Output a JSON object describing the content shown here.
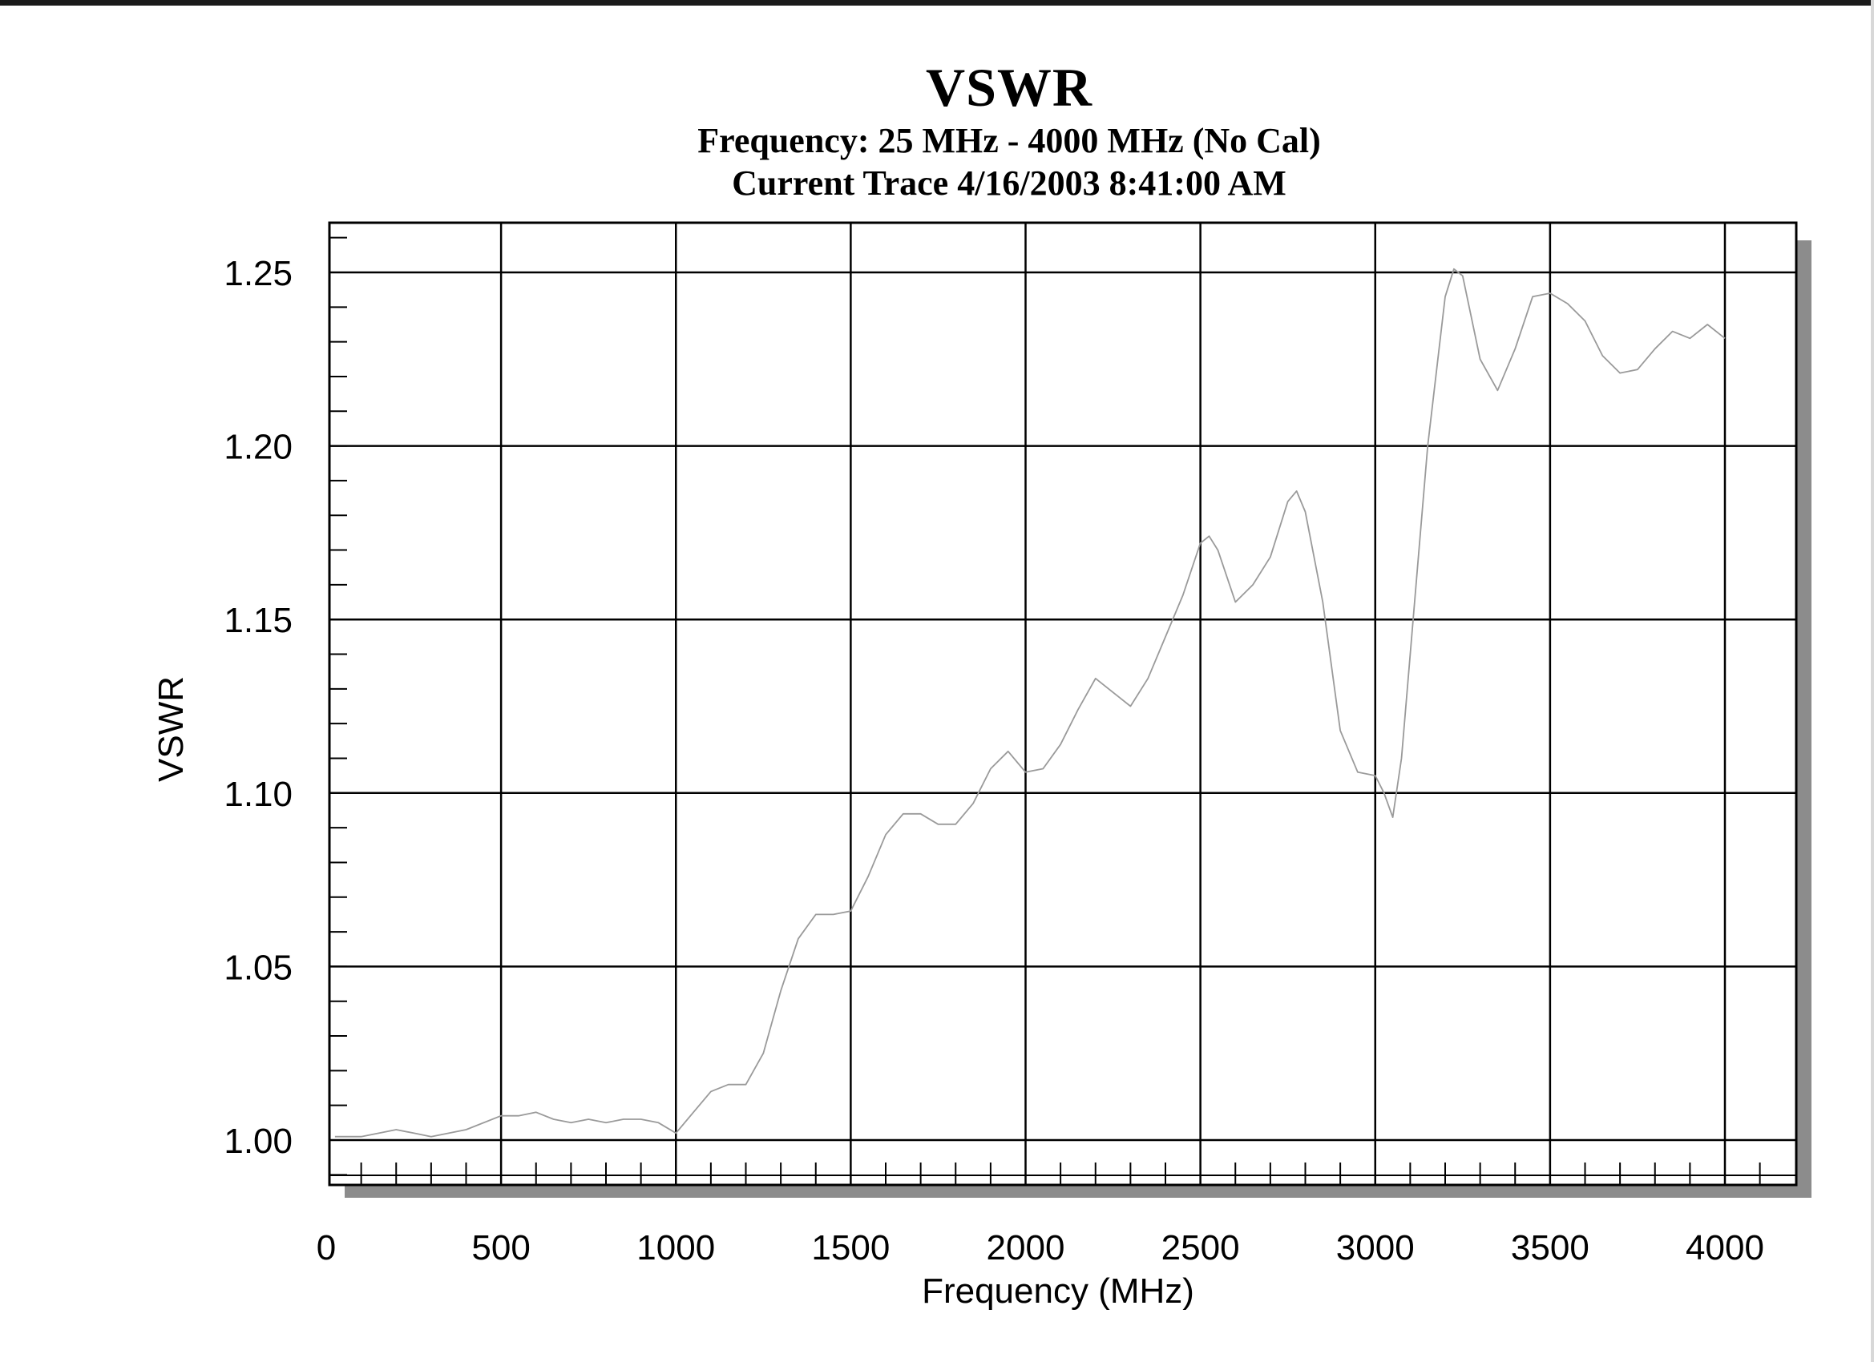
{
  "chart_data": {
    "type": "line",
    "title": "VSWR",
    "subtitle": [
      "Frequency: 25 MHz - 4000 MHz (No Cal)",
      "Current Trace 4/16/2003 8:41:00 AM"
    ],
    "xlabel": "Frequency (MHz)",
    "ylabel": "VSWR",
    "xlim": [
      0,
      4200
    ],
    "ylim": [
      0.988,
      1.265
    ],
    "x_ticks": [
      0,
      500,
      1000,
      1500,
      2000,
      2500,
      3000,
      3500,
      4000
    ],
    "x_tick_labels": [
      "0",
      "500",
      "1000",
      "1500",
      "2000",
      "2500",
      "3000",
      "3500",
      "4000"
    ],
    "y_ticks": [
      1.0,
      1.05,
      1.1,
      1.15,
      1.2,
      1.25
    ],
    "y_tick_labels": [
      "1.00",
      "1.05",
      "1.10",
      "1.15",
      "1.20",
      "1.25"
    ],
    "grid": true,
    "line_color": "#9a9a9a",
    "series": [
      {
        "x": [
          25,
          100,
          200,
          250,
          300,
          400,
          500,
          550,
          600,
          650,
          700,
          750,
          800,
          850,
          900,
          950,
          1000,
          1050,
          1100,
          1150,
          1200,
          1250,
          1300,
          1350,
          1400,
          1450,
          1500,
          1550,
          1600,
          1650,
          1700,
          1750,
          1800,
          1850,
          1900,
          1950,
          2000,
          2050,
          2100,
          2150,
          2200,
          2250,
          2300,
          2350,
          2400,
          2450,
          2500,
          2525,
          2550,
          2600,
          2650,
          2700,
          2750,
          2775,
          2800,
          2850,
          2900,
          2950,
          3000,
          3025,
          3050,
          3075,
          3100,
          3150,
          3200,
          3225,
          3250,
          3300,
          3350,
          3400,
          3450,
          3500,
          3550,
          3600,
          3650,
          3700,
          3750,
          3800,
          3850,
          3900,
          3950,
          4000
        ],
        "y": [
          1.001,
          1.001,
          1.003,
          1.002,
          1.001,
          1.003,
          1.007,
          1.007,
          1.008,
          1.006,
          1.005,
          1.006,
          1.005,
          1.006,
          1.006,
          1.005,
          1.002,
          1.008,
          1.014,
          1.016,
          1.016,
          1.025,
          1.043,
          1.058,
          1.065,
          1.065,
          1.066,
          1.076,
          1.088,
          1.094,
          1.094,
          1.091,
          1.091,
          1.097,
          1.107,
          1.112,
          1.106,
          1.107,
          1.114,
          1.124,
          1.133,
          1.129,
          1.125,
          1.133,
          1.145,
          1.157,
          1.172,
          1.174,
          1.17,
          1.155,
          1.16,
          1.168,
          1.184,
          1.187,
          1.181,
          1.155,
          1.118,
          1.106,
          1.105,
          1.1,
          1.093,
          1.11,
          1.14,
          1.2,
          1.243,
          1.251,
          1.249,
          1.225,
          1.216,
          1.228,
          1.243,
          1.244,
          1.241,
          1.236,
          1.226,
          1.221,
          1.222,
          1.228,
          1.233,
          1.231,
          1.235,
          1.231
        ]
      }
    ]
  }
}
